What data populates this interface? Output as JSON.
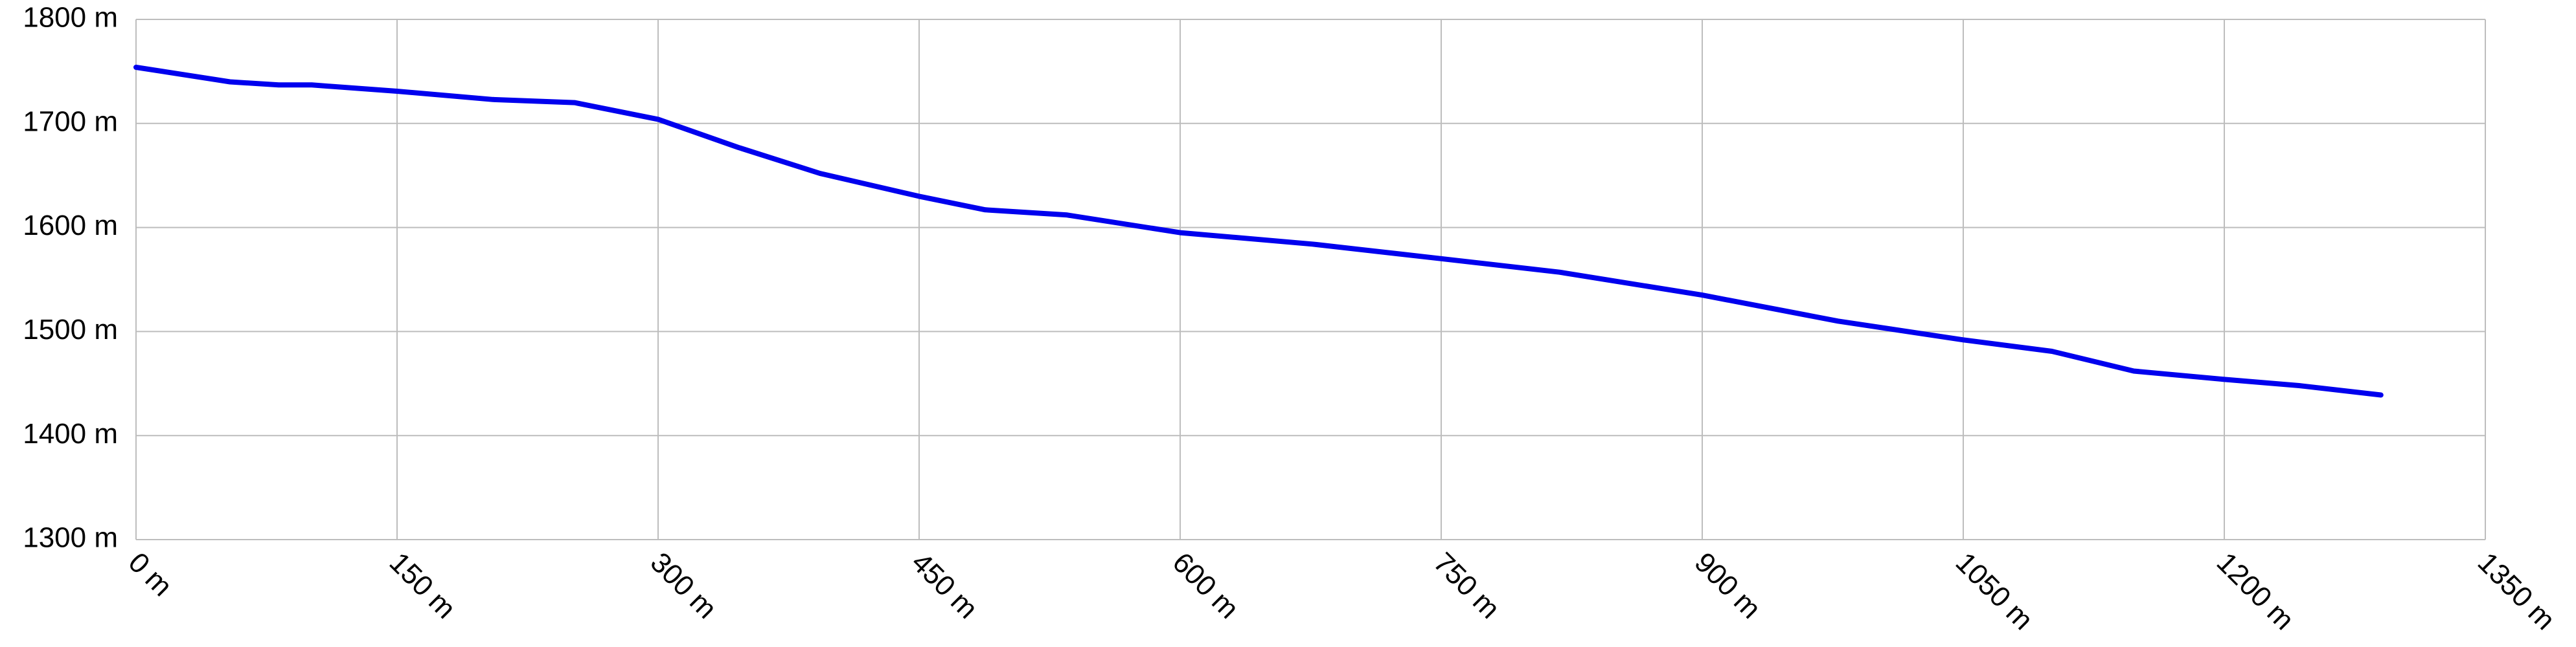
{
  "chart_data": {
    "type": "line",
    "x": [
      0,
      54,
      82,
      101,
      150,
      205,
      252,
      300,
      346,
      393,
      450,
      488,
      535,
      600,
      676,
      750,
      818,
      900,
      978,
      1050,
      1101,
      1148,
      1200,
      1243,
      1290
    ],
    "values": [
      1754,
      1740,
      1737,
      1737,
      1731,
      1723,
      1720,
      1704,
      1677,
      1652,
      1630,
      1617,
      1612,
      1595,
      1584,
      1570,
      1557,
      1535,
      1510,
      1492,
      1481,
      1462,
      1454,
      1448,
      1439
    ],
    "color": "#0000ee",
    "xlim": [
      0,
      1350
    ],
    "ylim": [
      1300,
      1800
    ],
    "xticks": [
      {
        "value": 0,
        "label": "0 m"
      },
      {
        "value": 150,
        "label": "150 m"
      },
      {
        "value": 300,
        "label": "300 m"
      },
      {
        "value": 450,
        "label": "450 m"
      },
      {
        "value": 600,
        "label": "600 m"
      },
      {
        "value": 750,
        "label": "750 m"
      },
      {
        "value": 900,
        "label": "900 m"
      },
      {
        "value": 1050,
        "label": "1050 m"
      },
      {
        "value": 1200,
        "label": "1200 m"
      },
      {
        "value": 1350,
        "label": "1350 m"
      }
    ],
    "yticks": [
      {
        "value": 1300,
        "label": "1300 m"
      },
      {
        "value": 1400,
        "label": "1400 m"
      },
      {
        "value": 1500,
        "label": "1500 m"
      },
      {
        "value": 1600,
        "label": "1600 m"
      },
      {
        "value": 1700,
        "label": "1700 m"
      },
      {
        "value": 1800,
        "label": "1800 m"
      }
    ],
    "grid": true
  }
}
